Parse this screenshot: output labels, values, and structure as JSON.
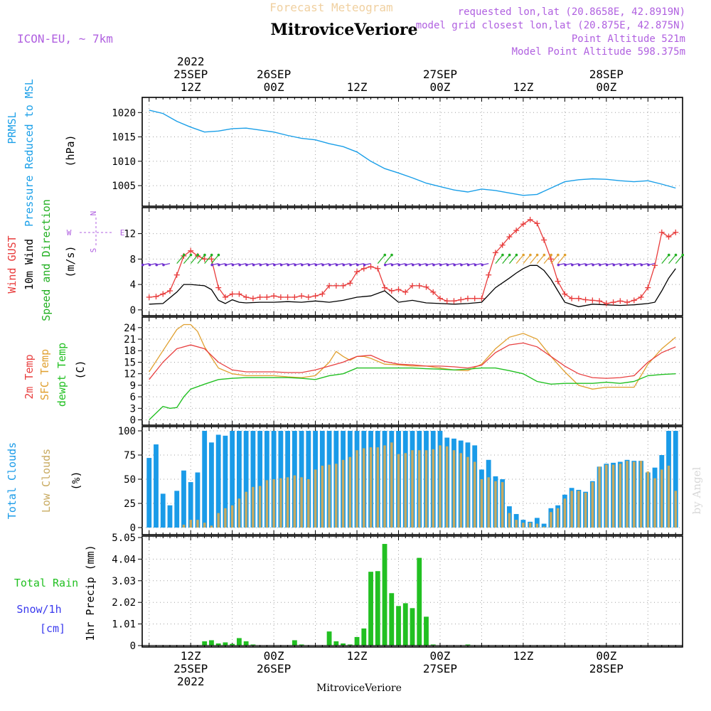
{
  "header": {
    "title_top": "Forecast Meteogram",
    "location": "MitroviceVeriore",
    "model": "ICON-EU, ~ 7km",
    "requested": "requested lon,lat (20.8658E, 42.8919N)",
    "closest": "model grid closest lon,lat (20.875E, 42.875N)",
    "point_alt": "Point Altitude 521m",
    "model_alt": "Model Point Altitude 598.375m",
    "watermark": "by Angel",
    "footer_location": "MitroviceVeriore"
  },
  "time_axis": {
    "top_labels": [
      {
        "h": 12,
        "lines": [
          "2022",
          "25SEP",
          "12Z"
        ]
      },
      {
        "h": 24,
        "lines": [
          "26SEP",
          "00Z"
        ]
      },
      {
        "h": 36,
        "lines": [
          "12Z"
        ]
      },
      {
        "h": 48,
        "lines": [
          "27SEP",
          "00Z"
        ]
      },
      {
        "h": 60,
        "lines": [
          "12Z"
        ]
      },
      {
        "h": 72,
        "lines": [
          "28SEP",
          "00Z"
        ]
      }
    ],
    "bottom_labels": [
      {
        "h": 12,
        "lines": [
          "12Z",
          "25SEP",
          "2022"
        ]
      },
      {
        "h": 24,
        "lines": [
          "00Z",
          "26SEP"
        ]
      },
      {
        "h": 36,
        "lines": [
          "12Z"
        ]
      },
      {
        "h": 48,
        "lines": [
          "00Z",
          "27SEP"
        ]
      },
      {
        "h": 60,
        "lines": [
          "12Z"
        ]
      },
      {
        "h": 72,
        "lines": [
          "00Z",
          "28SEP"
        ]
      }
    ]
  },
  "colors": {
    "pressure": "#1a9fe8",
    "gust": "#e83c3c",
    "wind": "#000000",
    "dir": "#22b022",
    "temp": "#e84040",
    "sfc": "#e0a030",
    "dew": "#22c022",
    "total_cloud": "#1a9be8",
    "low_cloud": "#c8aa60",
    "rain": "#22c022",
    "snow": "#3a3aee",
    "purple": "#b060e0"
  },
  "chart_data": [
    {
      "type": "line",
      "title": "PRMSL",
      "ylabel_lines": [
        "PRMSL",
        "Pressure Reduced to MSL"
      ],
      "units": "(hPa)",
      "yticks": [
        1005,
        1010,
        1015,
        1020
      ],
      "ylim": [
        1001.8,
        1021.5
      ],
      "series": [
        {
          "name": "PRMSL",
          "x": [
            6,
            8,
            10,
            12,
            14,
            16,
            18,
            20,
            22,
            24,
            26,
            28,
            30,
            32,
            34,
            36,
            38,
            40,
            42,
            44,
            46,
            48,
            50,
            52,
            54,
            56,
            58,
            60,
            62,
            64,
            66,
            68,
            70,
            72,
            74,
            76,
            78,
            80,
            82
          ],
          "y": [
            1020.5,
            1019.8,
            1018.2,
            1017.0,
            1016.0,
            1016.2,
            1016.7,
            1016.8,
            1016.4,
            1016.0,
            1015.3,
            1014.7,
            1014.4,
            1013.6,
            1013.0,
            1011.9,
            1010.0,
            1008.5,
            1007.6,
            1006.6,
            1005.5,
            1004.8,
            1004.1,
            1003.7,
            1004.3,
            1004.0,
            1003.5,
            1003.0,
            1003.2,
            1004.5,
            1005.8,
            1006.2,
            1006.4,
            1006.3,
            1006.0,
            1005.8,
            1006.0,
            1005.3,
            1004.5
          ]
        }
      ]
    },
    {
      "type": "line",
      "title": "Wind",
      "ylabel_lines": [
        "Wind GUST",
        "10m Wind",
        "Speed and Direction"
      ],
      "units": "(m/s)",
      "yticks": [
        0,
        4,
        8,
        12
      ],
      "ylim": [
        -0.8,
        15.2
      ],
      "compass": {
        "n": "N",
        "s": "S",
        "w": "W",
        "e": "E"
      },
      "series": [
        {
          "name": "Wind GUST",
          "x": [
            6,
            7,
            8,
            9,
            10,
            11,
            12,
            13,
            14,
            15,
            16,
            17,
            18,
            19,
            20,
            21,
            22,
            23,
            24,
            25,
            26,
            27,
            28,
            29,
            30,
            31,
            32,
            33,
            34,
            35,
            36,
            37,
            38,
            39,
            40,
            41,
            42,
            43,
            44,
            45,
            46,
            47,
            48,
            49,
            50,
            51,
            52,
            53,
            54,
            55,
            56,
            57,
            58,
            59,
            60,
            61,
            62,
            63,
            64,
            65,
            66,
            67,
            68,
            69,
            70,
            71,
            72,
            73,
            74,
            75,
            76,
            77,
            78,
            79,
            80,
            81,
            82
          ],
          "y": [
            2.0,
            2.1,
            2.5,
            3.0,
            5.5,
            8.5,
            9.3,
            8.5,
            8.0,
            8.0,
            3.5,
            2.0,
            2.5,
            2.5,
            2.0,
            1.8,
            2.0,
            2.0,
            2.2,
            2.0,
            2.0,
            2.0,
            2.2,
            2.0,
            2.2,
            2.5,
            3.8,
            3.8,
            3.8,
            4.2,
            6.0,
            6.5,
            6.8,
            6.5,
            3.5,
            3.0,
            3.2,
            2.8,
            3.8,
            3.8,
            3.6,
            2.8,
            1.8,
            1.4,
            1.4,
            1.6,
            1.8,
            1.8,
            1.8,
            5.5,
            9.0,
            10.2,
            11.5,
            12.5,
            13.5,
            14.2,
            13.6,
            11.0,
            8.0,
            4.5,
            2.5,
            1.8,
            1.8,
            1.6,
            1.5,
            1.4,
            1.0,
            1.2,
            1.4,
            1.2,
            1.5,
            2.0,
            3.5,
            7.0,
            12.2,
            11.5,
            12.2
          ]
        },
        {
          "name": "10m Wind",
          "x": [
            6,
            8,
            10,
            11,
            12,
            14,
            15,
            16,
            17,
            18,
            19,
            20,
            22,
            24,
            26,
            28,
            30,
            32,
            34,
            36,
            38,
            40,
            42,
            44,
            46,
            48,
            50,
            52,
            54,
            56,
            58,
            59,
            60,
            61,
            62,
            63,
            64,
            65,
            66,
            68,
            70,
            72,
            74,
            76,
            78,
            79,
            80,
            81,
            82
          ],
          "y": [
            0.9,
            1.0,
            2.8,
            4.0,
            4.0,
            3.8,
            3.2,
            1.5,
            1.0,
            1.6,
            1.2,
            1.1,
            1.2,
            1.2,
            1.3,
            1.2,
            1.4,
            1.2,
            1.5,
            2.0,
            2.2,
            3.0,
            1.2,
            1.5,
            1.1,
            1.0,
            0.9,
            1.0,
            1.2,
            3.5,
            5.0,
            5.8,
            6.5,
            7.0,
            7.0,
            6.2,
            4.8,
            3.0,
            1.2,
            0.5,
            0.9,
            0.8,
            0.7,
            0.8,
            1.0,
            1.2,
            3.0,
            5.0,
            6.5
          ]
        }
      ]
    },
    {
      "type": "line",
      "title": "Temperature",
      "ylabel_lines": [
        "2m Temp",
        "SFC Temp",
        "dewpt Temp"
      ],
      "units": "(C)",
      "yticks": [
        0,
        3,
        6,
        9,
        12,
        15,
        18,
        21,
        24
      ],
      "ylim": [
        -1.2,
        26
      ],
      "series": [
        {
          "name": "2m Temp",
          "x": [
            6,
            8,
            10,
            12,
            14,
            16,
            18,
            20,
            22,
            24,
            26,
            28,
            30,
            32,
            34,
            36,
            38,
            40,
            42,
            44,
            46,
            48,
            50,
            52,
            54,
            56,
            58,
            60,
            62,
            64,
            66,
            68,
            70,
            72,
            74,
            76,
            78,
            80,
            82
          ],
          "y": [
            10.5,
            15.0,
            18.5,
            19.5,
            18.5,
            15.0,
            13.0,
            12.5,
            12.5,
            12.5,
            12.3,
            12.3,
            13.0,
            14.0,
            15.0,
            16.5,
            16.8,
            15.2,
            14.5,
            14.3,
            14.0,
            14.0,
            13.8,
            13.5,
            14.2,
            17.5,
            19.5,
            20.0,
            19.0,
            16.5,
            14.0,
            12.0,
            11.0,
            10.8,
            11.0,
            11.5,
            15.0,
            17.5,
            19.0
          ]
        },
        {
          "name": "SFC Temp",
          "x": [
            6,
            8,
            10,
            11,
            12,
            13,
            14,
            16,
            18,
            20,
            22,
            24,
            26,
            28,
            30,
            32,
            33,
            34,
            35,
            36,
            37,
            38,
            40,
            42,
            44,
            46,
            48,
            50,
            52,
            54,
            56,
            58,
            60,
            62,
            64,
            66,
            68,
            70,
            72,
            74,
            76,
            78,
            80,
            82
          ],
          "y": [
            12.5,
            18.0,
            23.5,
            24.8,
            24.8,
            23.0,
            19.0,
            13.5,
            12.0,
            11.5,
            11.5,
            11.5,
            11.2,
            11.0,
            11.5,
            15.0,
            17.8,
            16.5,
            15.5,
            16.5,
            16.5,
            16.0,
            14.5,
            14.3,
            14.0,
            14.0,
            13.5,
            13.0,
            12.8,
            14.5,
            18.5,
            21.5,
            22.5,
            21.0,
            16.5,
            12.5,
            9.0,
            8.0,
            8.5,
            8.5,
            8.5,
            14.5,
            18.5,
            21.5
          ]
        },
        {
          "name": "dewpt Temp",
          "x": [
            6,
            8,
            9,
            10,
            11,
            12,
            14,
            16,
            18,
            20,
            22,
            24,
            26,
            28,
            30,
            32,
            34,
            36,
            38,
            40,
            42,
            44,
            46,
            48,
            50,
            52,
            54,
            56,
            58,
            60,
            62,
            64,
            66,
            68,
            70,
            72,
            74,
            76,
            78,
            80,
            82
          ],
          "y": [
            0.0,
            3.5,
            3.0,
            3.2,
            6.0,
            8.0,
            9.3,
            10.5,
            10.8,
            11.0,
            11.0,
            11.0,
            11.0,
            10.8,
            10.5,
            11.5,
            12.0,
            13.5,
            13.5,
            13.5,
            13.5,
            13.5,
            13.3,
            13.2,
            13.0,
            13.2,
            13.5,
            13.5,
            12.8,
            12.0,
            10.0,
            9.3,
            9.5,
            9.5,
            9.5,
            9.8,
            9.5,
            10.0,
            11.5,
            11.8,
            12.0
          ]
        }
      ]
    },
    {
      "type": "bar",
      "title": "Clouds",
      "ylabel_lines": [
        "Total Clouds",
        "Low Clouds"
      ],
      "units": "(%)",
      "yticks": [
        0,
        25,
        50,
        75,
        100
      ],
      "ylim": [
        0,
        100
      ],
      "x_start": 6,
      "series": [
        {
          "name": "Total Clouds",
          "values": [
            72,
            86,
            35,
            23,
            38,
            59,
            47,
            57,
            100,
            88,
            96,
            95,
            100,
            100,
            100,
            100,
            100,
            100,
            100,
            100,
            100,
            100,
            100,
            100,
            100,
            100,
            100,
            100,
            100,
            100,
            100,
            100,
            100,
            100,
            100,
            100,
            100,
            100,
            100,
            100,
            100,
            100,
            100,
            93,
            92,
            90,
            88,
            85,
            60,
            70,
            53,
            50,
            22,
            14,
            8,
            6,
            10,
            4,
            20,
            23,
            34,
            41,
            39,
            37,
            48,
            63,
            66,
            67,
            68,
            70,
            69,
            69,
            57,
            62,
            75,
            100,
            100
          ]
        },
        {
          "name": "Low Clouds",
          "values": [
            0,
            0,
            0,
            0,
            0,
            3,
            8,
            8,
            5,
            2,
            15,
            20,
            23,
            30,
            37,
            42,
            43,
            49,
            50,
            51,
            52,
            54,
            52,
            50,
            60,
            64,
            65,
            66,
            70,
            73,
            80,
            82,
            83,
            83,
            85,
            88,
            76,
            77,
            80,
            80,
            80,
            81,
            85,
            84,
            80,
            77,
            73,
            68,
            50,
            52,
            48,
            47,
            15,
            8,
            5,
            5,
            4,
            1,
            16,
            20,
            30,
            38,
            38,
            36,
            47,
            63,
            65,
            65,
            66,
            69,
            68,
            69,
            58,
            51,
            60,
            64,
            38
          ]
        }
      ]
    },
    {
      "type": "bar",
      "title": "Precipitation",
      "ylabel_lines": [
        "1hr Precip (mm)"
      ],
      "left_labels": [
        "Total  Rain",
        "Snow/1h",
        "[cm]"
      ],
      "yticks": [
        0,
        1.01,
        2.02,
        3.03,
        4.04,
        5.05
      ],
      "ylim": [
        0,
        5.05
      ],
      "x_start": 6,
      "series": [
        {
          "name": "Total Rain",
          "values": [
            0,
            0,
            0,
            0,
            0,
            0,
            0,
            0,
            0.2,
            0.25,
            0.1,
            0.15,
            0.08,
            0.35,
            0.2,
            0.05,
            0,
            0,
            0,
            0,
            0,
            0.25,
            0.05,
            0,
            0,
            0,
            0.66,
            0.2,
            0.1,
            0.05,
            0.4,
            0.8,
            3.45,
            3.48,
            4.75,
            2.45,
            1.85,
            1.98,
            1.75,
            4.1,
            1.35,
            0.05,
            0,
            0,
            0,
            0,
            0.05,
            0,
            0,
            0,
            0,
            0,
            0,
            0,
            0,
            0,
            0,
            0,
            0,
            0,
            0,
            0,
            0,
            0,
            0,
            0,
            0,
            0,
            0,
            0,
            0,
            0,
            0,
            0,
            0,
            0,
            0
          ]
        }
      ]
    }
  ]
}
